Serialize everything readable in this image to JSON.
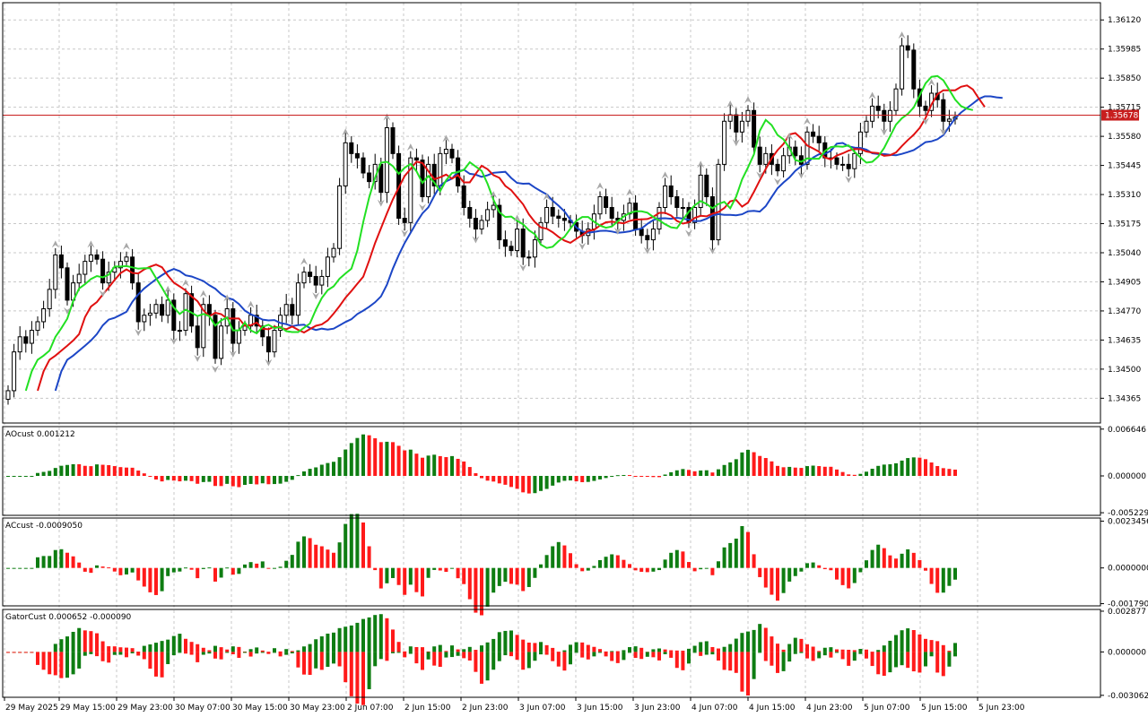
{
  "chart_data": {
    "type": "candlestick-with-indicators",
    "symbol_price": "1.35678",
    "time_labels": [
      "29 May 2025",
      "29 May 15:00",
      "29 May 23:00",
      "30 May 07:00",
      "30 May 15:00",
      "30 May 23:00",
      "2 Jun 07:00",
      "2 Jun 15:00",
      "2 Jun 23:00",
      "3 Jun 07:00",
      "3 Jun 15:00",
      "3 Jun 23:00",
      "4 Jun 07:00",
      "4 Jun 15:00",
      "4 Jun 23:00",
      "5 Jun 07:00",
      "5 Jun 15:00",
      "5 Jun 23:00"
    ],
    "price_axis": {
      "ticks": [
        "1.36120",
        "1.35985",
        "1.35850",
        "1.35715",
        "1.35580",
        "1.35445",
        "1.35310",
        "1.35175",
        "1.35040",
        "1.34905",
        "1.34770",
        "1.34635",
        "1.34500",
        "1.34365"
      ],
      "min": 1.3425,
      "max": 1.362
    },
    "current_price": 1.35678,
    "close": [
      1.344,
      1.3458,
      1.3465,
      1.3462,
      1.3468,
      1.3472,
      1.3478,
      1.3487,
      1.3503,
      1.3497,
      1.3482,
      1.349,
      1.3494,
      1.35,
      1.3503,
      1.3501,
      1.349,
      1.3495,
      1.3497,
      1.35,
      1.3502,
      1.349,
      1.3472,
      1.3475,
      1.3476,
      1.348,
      1.3475,
      1.3482,
      1.3468,
      1.3468,
      1.3485,
      1.347,
      1.346,
      1.348,
      1.3475,
      1.3455,
      1.347,
      1.3478,
      1.3462,
      1.3468,
      1.347,
      1.3475,
      1.347,
      1.3465,
      1.3458,
      1.3468,
      1.3475,
      1.348,
      1.3475,
      1.349,
      1.3495,
      1.3493,
      1.3489,
      1.3493,
      1.3502,
      1.3506,
      1.3535,
      1.3555,
      1.355,
      1.3548,
      1.3541,
      1.3537,
      1.3545,
      1.3532,
      1.3562,
      1.355,
      1.352,
      1.3518,
      1.3548,
      1.3547,
      1.353,
      1.3545,
      1.3535,
      1.355,
      1.3552,
      1.3548,
      1.3535,
      1.3525,
      1.352,
      1.3515,
      1.3519,
      1.3524,
      1.3526,
      1.351,
      1.3507,
      1.3505,
      1.3515,
      1.3502,
      1.3502,
      1.351,
      1.3518,
      1.3525,
      1.3521,
      1.352,
      1.3519,
      1.3518,
      1.3514,
      1.3512,
      1.3515,
      1.3522,
      1.353,
      1.3525,
      1.352,
      1.3519,
      1.3522,
      1.3527,
      1.3515,
      1.3512,
      1.351,
      1.3515,
      1.3525,
      1.3535,
      1.353,
      1.3525,
      1.3525,
      1.3518,
      1.3525,
      1.354,
      1.353,
      1.351,
      1.3545,
      1.3565,
      1.3568,
      1.356,
      1.3565,
      1.357,
      1.3553,
      1.3545,
      1.355,
      1.3545,
      1.3542,
      1.3549,
      1.3553,
      1.3549,
      1.3545,
      1.356,
      1.3558,
      1.3555,
      1.3548,
      1.3548,
      1.3545,
      1.3545,
      1.3543,
      1.355,
      1.356,
      1.3565,
      1.3572,
      1.357,
      1.3565,
      1.357,
      1.358,
      1.36,
      1.3598,
      1.358,
      1.3572,
      1.357,
      1.3578,
      1.3575,
      1.3565,
      1.3566,
      1.3567
    ],
    "ao": {
      "label": "AOcust 0.001212",
      "ticks": [
        "0.006646",
        "0.000000",
        "-0.005229"
      ],
      "min": -0.0056,
      "max": 0.007
    },
    "ac": {
      "label": "ACcust -0.0009050",
      "ticks": [
        "0.0023456",
        "0.0000000",
        "-0.0017900"
      ],
      "min": -0.0019,
      "max": 0.0025
    },
    "gator": {
      "label": "GatorCust 0.000652 -0.000090",
      "ticks": [
        "0.002877",
        "0.000000",
        "-0.003062"
      ],
      "min": -0.0032,
      "max": 0.003
    },
    "colors": {
      "up": "#0e7d12",
      "down": "#ff1a1a",
      "jaw": "#1c46c6",
      "teeth": "#e01010",
      "lips": "#22e022",
      "price_line": "#c81e1e",
      "fractal": "#a8a8a8"
    }
  }
}
